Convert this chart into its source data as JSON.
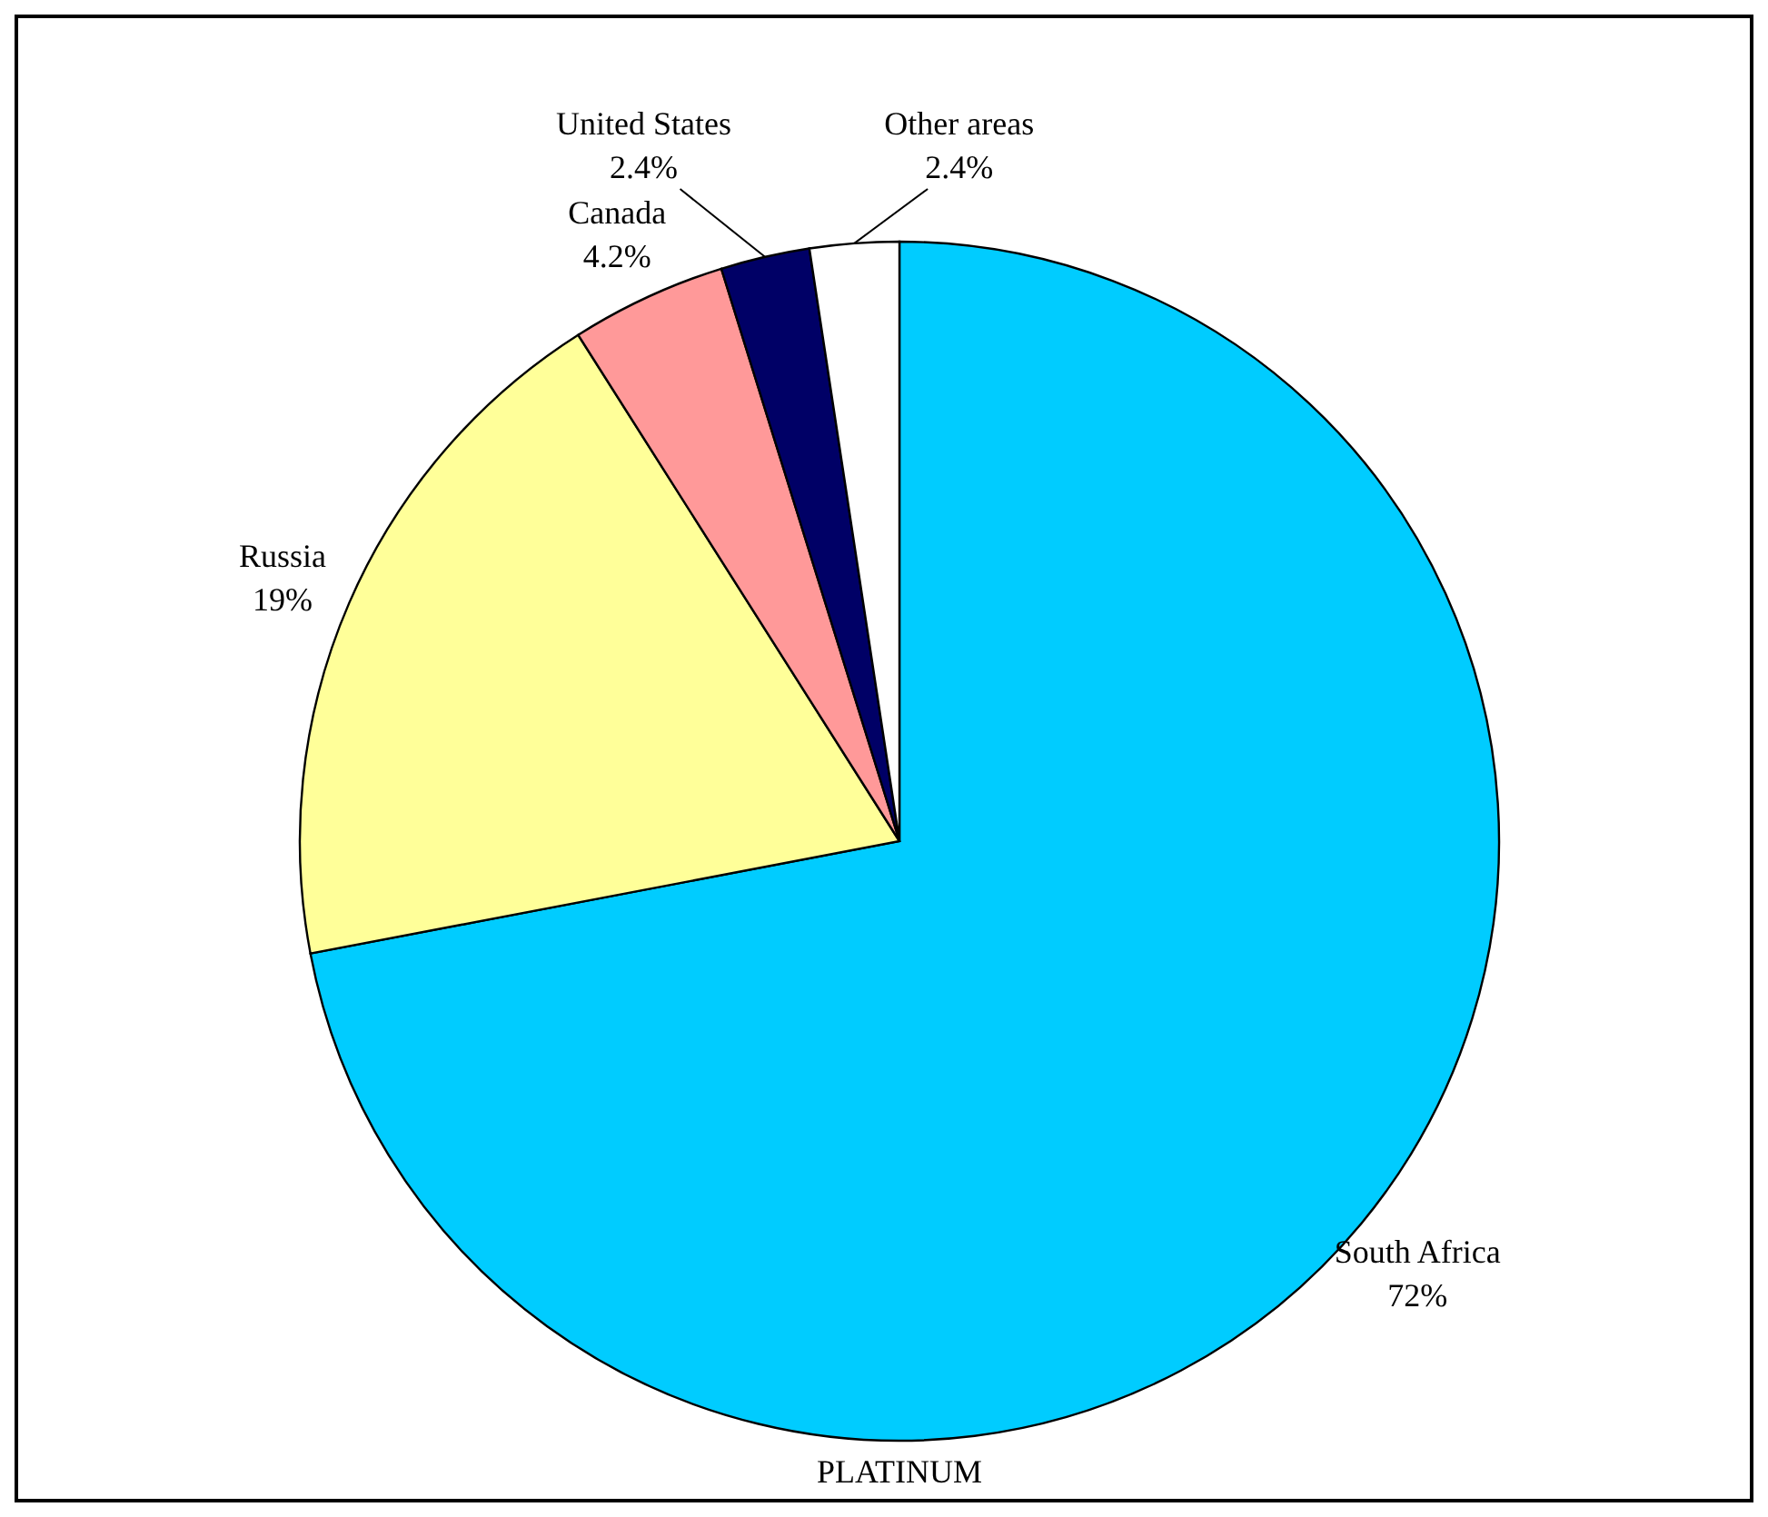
{
  "chart_data": {
    "type": "pie",
    "title": "PLATINUM",
    "categories": [
      "South Africa",
      "Russia",
      "Canada",
      "United States",
      "Other areas"
    ],
    "values": [
      72,
      19,
      4.2,
      2.4,
      2.4
    ],
    "value_labels": [
      "72%",
      "19%",
      "4.2%",
      "2.4%",
      "2.4%"
    ],
    "colors": [
      "#00ccff",
      "#ffff99",
      "#ff9999",
      "#000066",
      "#ffffff"
    ]
  }
}
